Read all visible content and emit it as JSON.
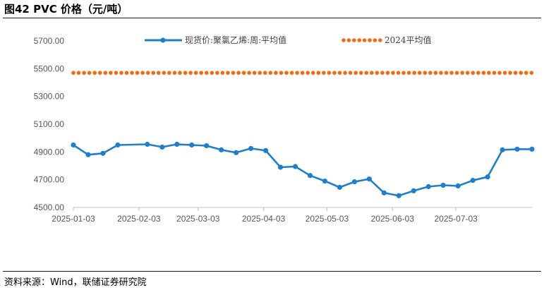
{
  "figure": {
    "title": "图42 PVC 价格（元/吨）",
    "source": "资料来源：Wind，联储证券研究院"
  },
  "colors": {
    "series_line": "#1F7FCC",
    "average_line": "#F26A14",
    "axis": "#BFBFBF",
    "tick_text": "#555555"
  },
  "chart_data": {
    "type": "line",
    "title": "PVC 价格（元/吨）",
    "xlabel": "",
    "ylabel": "",
    "ylim": [
      4500,
      5700
    ],
    "y_ticks": [
      "5700.00",
      "5500.00",
      "5300.00",
      "5100.00",
      "4900.00",
      "4700.00",
      "4500.00"
    ],
    "x_tick_labels": [
      "2025-01-03",
      "2025-02-03",
      "2025-03-03",
      "2025-04-03",
      "2025-05-03",
      "2025-06-03",
      "2025-07-03"
    ],
    "x_tick_days": [
      3,
      34,
      62,
      93,
      123,
      154,
      184
    ],
    "x_range_days": [
      3,
      220
    ],
    "legend_position": "top",
    "series": [
      {
        "name": "现货价:聚氯乙烯:周:平均值",
        "style": "line-marker",
        "color": "#1F7FCC",
        "x_days": [
          3,
          10,
          17,
          24,
          38,
          45,
          52,
          59,
          66,
          73,
          80,
          87,
          94,
          101,
          108,
          115,
          122,
          129,
          136,
          143,
          150,
          157,
          164,
          171,
          178,
          185,
          192,
          199,
          206,
          213,
          220
        ],
        "values": [
          4950,
          4880,
          4890,
          4950,
          4955,
          4935,
          4955,
          4950,
          4945,
          4915,
          4895,
          4925,
          4910,
          4790,
          4795,
          4730,
          4690,
          4645,
          4685,
          4705,
          4605,
          4585,
          4620,
          4650,
          4660,
          4655,
          4695,
          4720,
          4915,
          4920,
          4920
        ]
      },
      {
        "name": "2024平均值",
        "style": "dotted",
        "color": "#F26A14",
        "value": 5470
      }
    ]
  }
}
